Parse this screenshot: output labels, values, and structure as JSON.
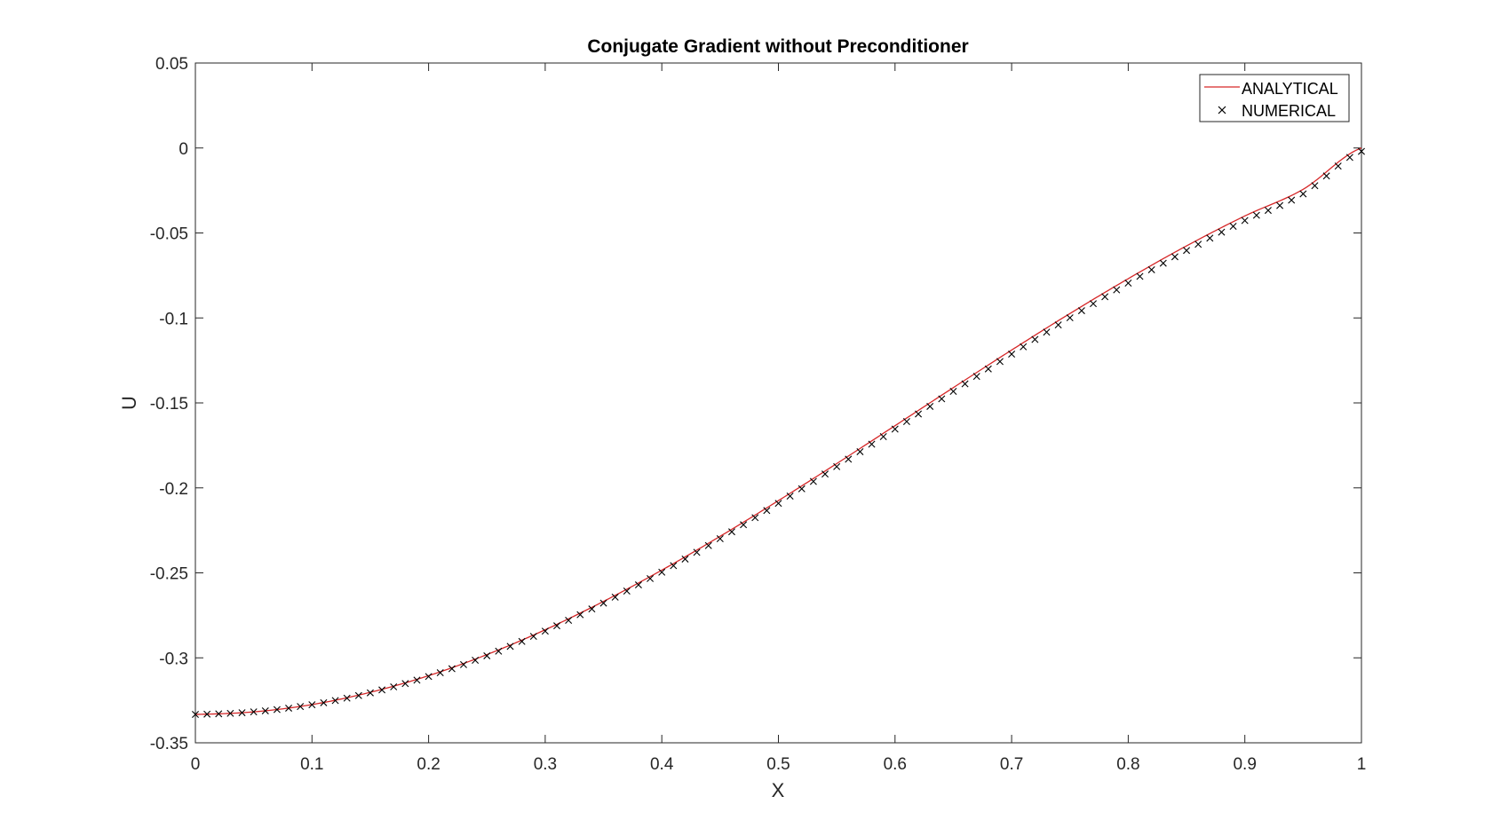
{
  "chart_data": {
    "type": "line",
    "title": "Conjugate Gradient without Preconditioner",
    "xlabel": "X",
    "ylabel": "U",
    "xlim": [
      0,
      1
    ],
    "ylim": [
      -0.35,
      0.05
    ],
    "xticks": [
      0,
      0.1,
      0.2,
      0.3,
      0.4,
      0.5,
      0.6,
      0.7,
      0.8,
      0.9,
      1
    ],
    "xtick_labels": [
      "0",
      "0.1",
      "0.2",
      "0.3",
      "0.4",
      "0.5",
      "0.6",
      "0.7",
      "0.8",
      "0.9",
      "1"
    ],
    "yticks": [
      -0.35,
      -0.3,
      -0.25,
      -0.2,
      -0.15,
      -0.1,
      -0.05,
      0,
      0.05
    ],
    "ytick_labels": [
      "-0.35",
      "-0.3",
      "-0.25",
      "-0.2",
      "-0.15",
      "-0.1",
      "-0.05",
      "0",
      "0.05"
    ],
    "grid": false,
    "legend_position": "top-right",
    "series": [
      {
        "name": "ANALYTICAL",
        "style": "line",
        "color": "#d62728",
        "x": [
          0,
          0.05,
          0.1,
          0.15,
          0.2,
          0.25,
          0.3,
          0.35,
          0.4,
          0.45,
          0.5,
          0.55,
          0.6,
          0.65,
          0.7,
          0.75,
          0.8,
          0.85,
          0.9,
          0.95,
          1
        ],
        "values": [
          -0.3333,
          -0.3318,
          -0.3275,
          -0.3203,
          -0.3105,
          -0.2981,
          -0.2835,
          -0.2668,
          -0.2484,
          -0.2285,
          -0.2075,
          -0.1857,
          -0.1634,
          -0.141,
          -0.1189,
          -0.0974,
          -0.0769,
          -0.0576,
          -0.04,
          -0.0243,
          0.0
        ]
      },
      {
        "name": "NUMERICAL",
        "style": "markers",
        "marker": "x",
        "color": "#000000",
        "x": [
          0,
          0.05,
          0.1,
          0.15,
          0.2,
          0.25,
          0.3,
          0.35,
          0.4,
          0.45,
          0.5,
          0.55,
          0.6,
          0.65,
          0.7,
          0.75,
          0.8,
          0.85,
          0.9,
          0.95,
          1
        ],
        "values": [
          -0.3333,
          -0.3318,
          -0.3276,
          -0.3206,
          -0.311,
          -0.2988,
          -0.2843,
          -0.2678,
          -0.2496,
          -0.2299,
          -0.2091,
          -0.1875,
          -0.1654,
          -0.1432,
          -0.1213,
          -0.0999,
          -0.0795,
          -0.0603,
          -0.0427,
          -0.027,
          -0.002
        ],
        "point_count": 101
      }
    ]
  }
}
